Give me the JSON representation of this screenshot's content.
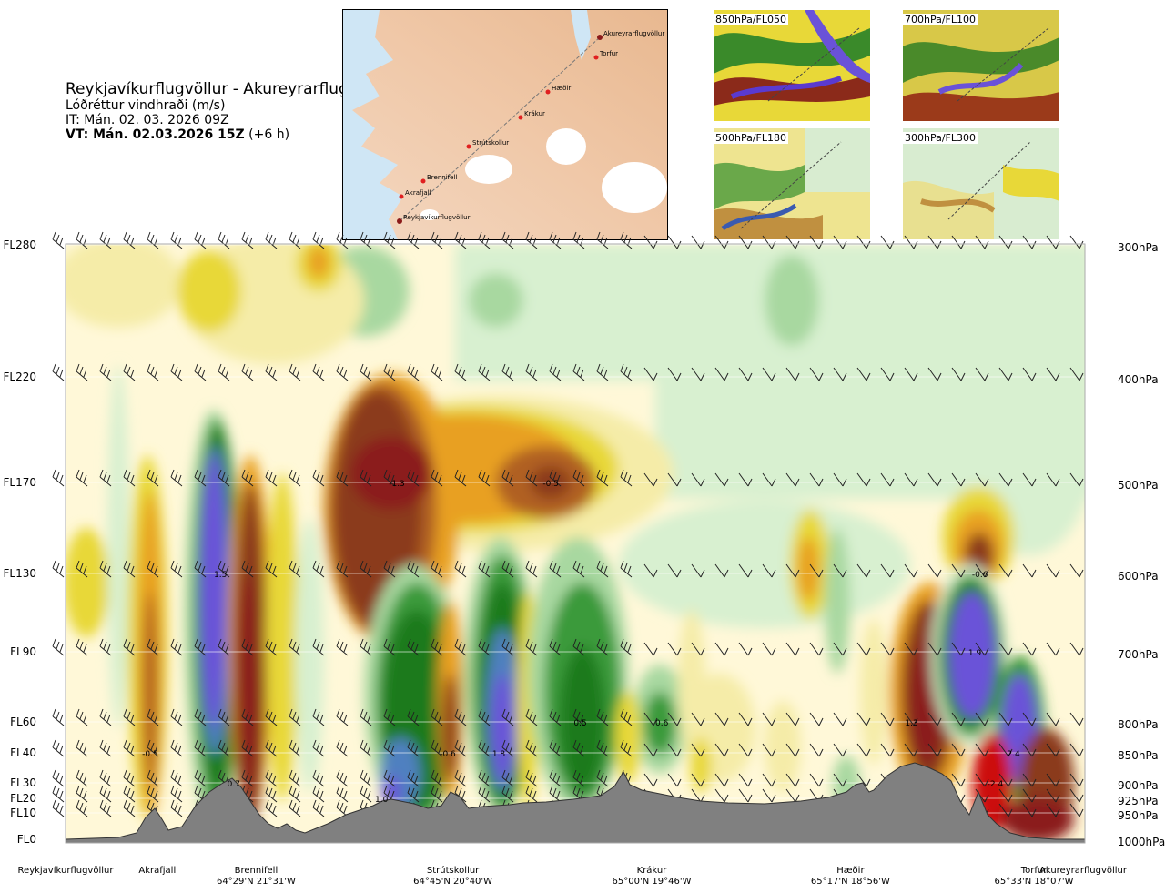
{
  "header": {
    "title": "Reykjavíkurflugvöllur - Akureyrarflugvöllur",
    "subtitle": "Lóðréttur vindhraði (m/s)",
    "init_time": "IT: Mán. 02. 03. 2026 09Z",
    "valid_time": "VT: Mán. 02.03.2026 15Z",
    "lead_time": "(+6 h)"
  },
  "overview_map": {
    "route_points": [
      "Akureyrarflugvöllur",
      "Torfur",
      "Hæðir",
      "Krákur",
      "Strútskollur",
      "Brennifell",
      "Akrafjall",
      "Reykjavíkurflugvöllur"
    ]
  },
  "level_panels": [
    {
      "label": "850hPa/FL050"
    },
    {
      "label": "700hPa/FL100"
    },
    {
      "label": "500hPa/FL180"
    },
    {
      "label": "300hPa/FL300"
    }
  ],
  "colors": {
    "strong_up": "#6a52d8",
    "up_blue": "#5080c0",
    "up_dark_green": "#1a7a1a",
    "up_green": "#3a9a3a",
    "up_light_green": "#a8d8a0",
    "up_pale_green": "#d8f0d0",
    "neutral": "#fff8d8",
    "down_pale_yellow": "#f5eca8",
    "down_yellow": "#e8d838",
    "down_orange": "#e8a020",
    "down_brown": "#b06020",
    "down_dark_brown": "#8b3a1a",
    "strong_down": "#8b1a1a",
    "extreme_down": "#cc1010",
    "terrain": "#808080"
  },
  "chart_data": {
    "type": "heatmap",
    "title": "Reykjavíkurflugvöllur - Akureyrarflugvöllur",
    "variable": "Lóðréttur vindhraði (m/s)",
    "y_left_ticks": [
      "FL280",
      "FL220",
      "FL170",
      "FL130",
      "FL90",
      "FL60",
      "FL40",
      "FL30",
      "FL20",
      "FL10",
      "FL0"
    ],
    "y_right_ticks": [
      "300hPa",
      "400hPa",
      "500hPa",
      "600hPa",
      "700hPa",
      "800hPa",
      "850hPa",
      "900hPa",
      "925hPa",
      "950hPa",
      "1000hPa"
    ],
    "pressure_levels_hpa": [
      300,
      400,
      500,
      600,
      700,
      800,
      850,
      900,
      925,
      950,
      1000
    ],
    "x_stations": [
      {
        "name": "Reykjavíkurflugvöllur",
        "coord": "",
        "frac": 0.0
      },
      {
        "name": "Akrafjall",
        "coord": "",
        "frac": 0.09
      },
      {
        "name": "Brennifell",
        "coord": "64°29'N 21°31'W",
        "frac": 0.187
      },
      {
        "name": "Strútskollur",
        "coord": "64°45'N 20°40'W",
        "frac": 0.38
      },
      {
        "name": "Krákur",
        "coord": "65°00'N 19°46'W",
        "frac": 0.575
      },
      {
        "name": "Hæðir",
        "coord": "65°17'N 18°56'W",
        "frac": 0.77
      },
      {
        "name": "Torfur",
        "coord": "65°33'N 18°07'W",
        "frac": 0.95
      },
      {
        "name": "Akureyrarflugvöllur",
        "coord": "",
        "frac": 1.0
      }
    ],
    "annotations": [
      {
        "text": "-1.3",
        "frac": 0.325,
        "hpa": 500
      },
      {
        "text": "-0.5",
        "frac": 0.476,
        "hpa": 500
      },
      {
        "text": "1.5",
        "frac": 0.152,
        "hpa": 600
      },
      {
        "text": "-0.6",
        "frac": 0.897,
        "hpa": 600
      },
      {
        "text": "1.9",
        "frac": 0.892,
        "hpa": 700
      },
      {
        "text": "0.5",
        "frac": 0.505,
        "hpa": 800
      },
      {
        "text": "0.6",
        "frac": 0.585,
        "hpa": 800
      },
      {
        "text": "1.3",
        "frac": 0.83,
        "hpa": 800
      },
      {
        "text": "-0.5",
        "frac": 0.083,
        "hpa": 850
      },
      {
        "text": "-0.6",
        "frac": 0.375,
        "hpa": 850
      },
      {
        "text": "1.8",
        "frac": 0.425,
        "hpa": 850
      },
      {
        "text": "2.4",
        "frac": 0.93,
        "hpa": 850
      },
      {
        "text": "0.7",
        "frac": 0.165,
        "hpa": 900
      },
      {
        "text": "-2.4",
        "frac": 0.912,
        "hpa": 900
      },
      {
        "text": "1.0",
        "frac": 0.31,
        "hpa": 925
      }
    ],
    "grid": true
  }
}
